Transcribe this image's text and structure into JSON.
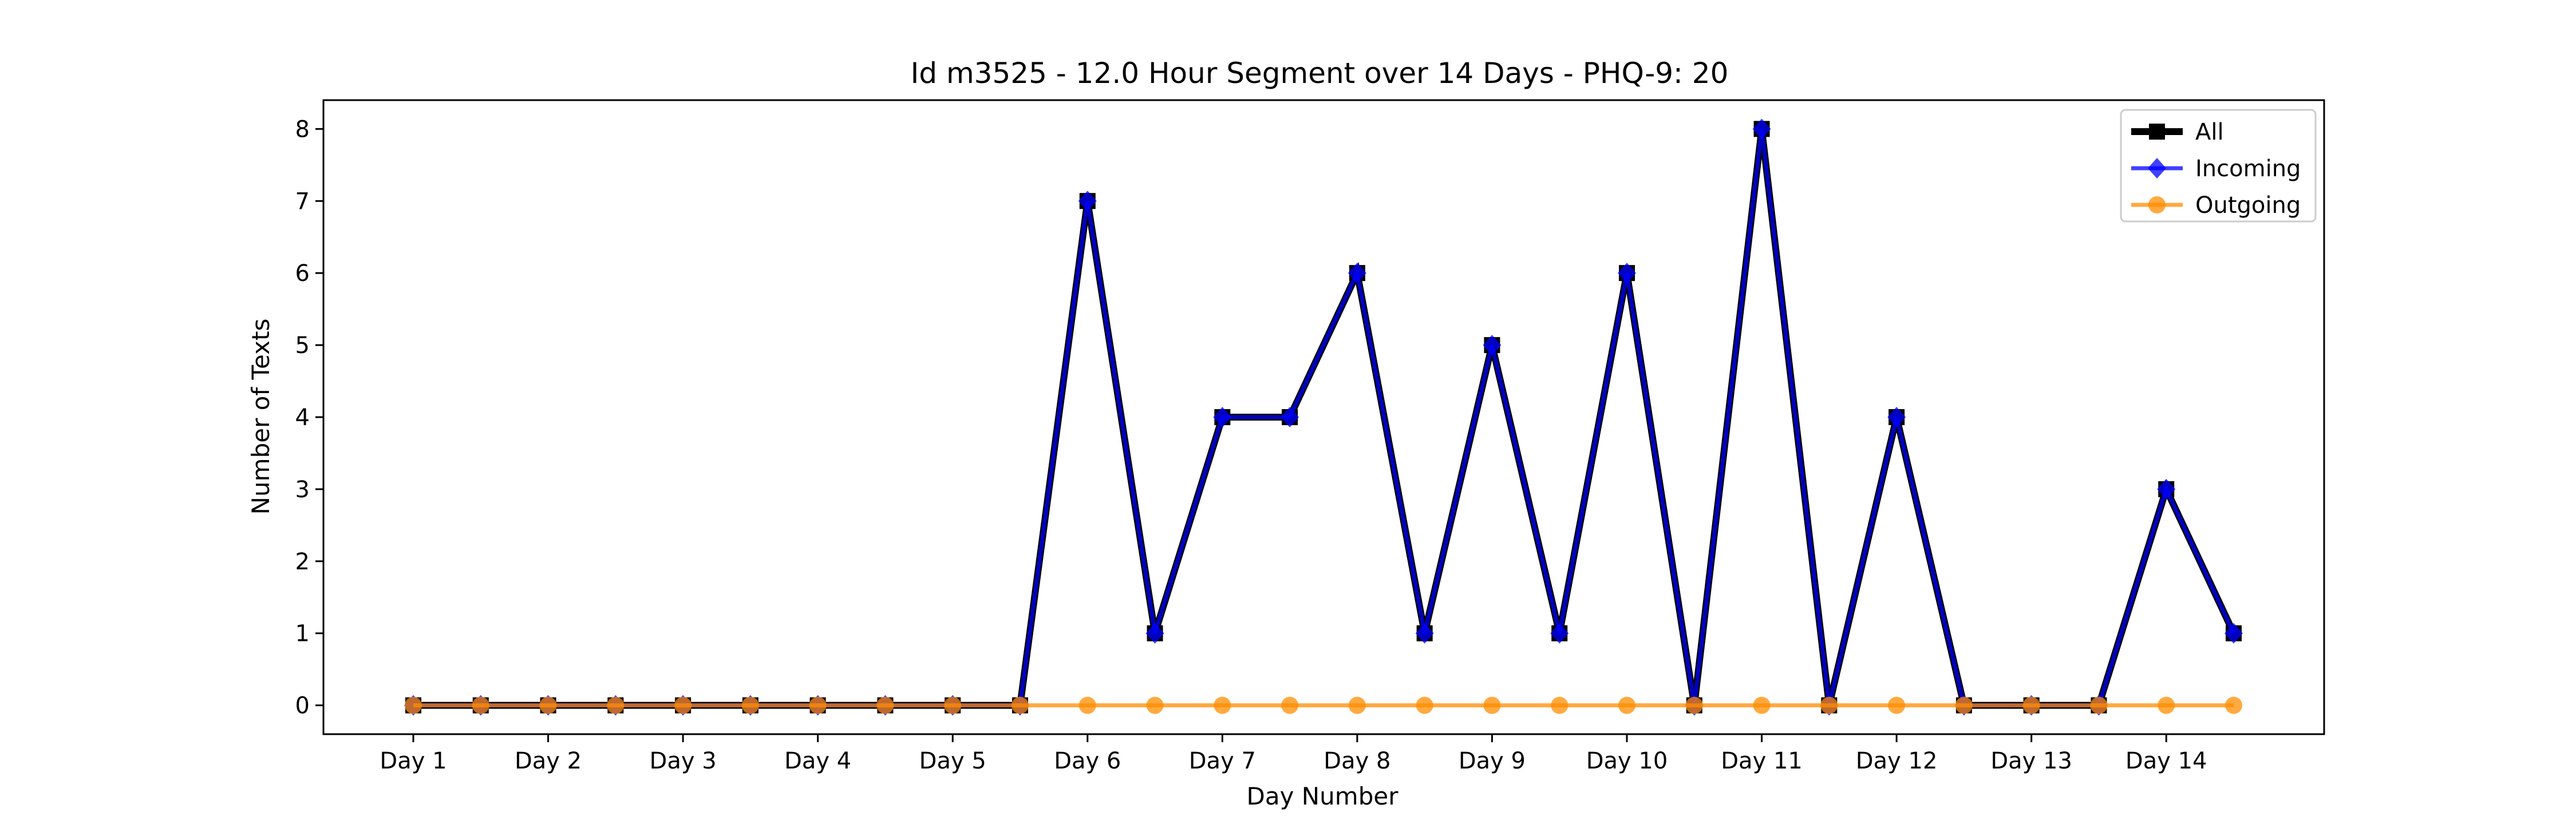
{
  "chart_data": {
    "type": "line",
    "title": "Id m3525 - 12.0 Hour Segment over 14 Days - PHQ-9: 20",
    "xlabel": "Day Number",
    "ylabel": "Number of Texts",
    "x_tick_labels": [
      "Day 1",
      "Day 2",
      "Day 3",
      "Day 4",
      "Day 5",
      "Day 6",
      "Day 7",
      "Day 8",
      "Day 9",
      "Day 10",
      "Day 11",
      "Day 12",
      "Day 13",
      "Day 14"
    ],
    "y_ticks": [
      0,
      1,
      2,
      3,
      4,
      5,
      6,
      7,
      8
    ],
    "ylim": [
      -0.4,
      8.4
    ],
    "x_segments": [
      "Day 1 (1)",
      "Day 1 (2)",
      "Day 2 (1)",
      "Day 2 (2)",
      "Day 3 (1)",
      "Day 3 (2)",
      "Day 4 (1)",
      "Day 4 (2)",
      "Day 5 (1)",
      "Day 5 (2)",
      "Day 6 (1)",
      "Day 6 (2)",
      "Day 7 (1)",
      "Day 7 (2)",
      "Day 8 (1)",
      "Day 8 (2)",
      "Day 9 (1)",
      "Day 9 (2)",
      "Day 10 (1)",
      "Day 10 (2)",
      "Day 11 (1)",
      "Day 11 (2)",
      "Day 12 (1)",
      "Day 12 (2)",
      "Day 13 (1)",
      "Day 13 (2)",
      "Day 14 (1)",
      "Day 14 (2)"
    ],
    "legend_position": "top-right",
    "grid": false,
    "series": [
      {
        "name": "All",
        "color": "#000000",
        "marker": "square",
        "values": [
          0,
          0,
          0,
          0,
          0,
          0,
          0,
          0,
          0,
          0,
          7,
          1,
          4,
          4,
          6,
          1,
          5,
          1,
          6,
          0,
          8,
          0,
          4,
          0,
          0,
          0,
          3,
          1
        ]
      },
      {
        "name": "Incoming",
        "color": "#0000ff",
        "marker": "diamond",
        "values": [
          0,
          0,
          0,
          0,
          0,
          0,
          0,
          0,
          0,
          0,
          7,
          1,
          4,
          4,
          6,
          1,
          5,
          1,
          6,
          0,
          8,
          0,
          4,
          0,
          0,
          0,
          3,
          1
        ]
      },
      {
        "name": "Outgoing",
        "color": "#ff8c00",
        "marker": "circle",
        "values": [
          0,
          0,
          0,
          0,
          0,
          0,
          0,
          0,
          0,
          0,
          0,
          0,
          0,
          0,
          0,
          0,
          0,
          0,
          0,
          0,
          0,
          0,
          0,
          0,
          0,
          0,
          0,
          0
        ]
      }
    ]
  }
}
